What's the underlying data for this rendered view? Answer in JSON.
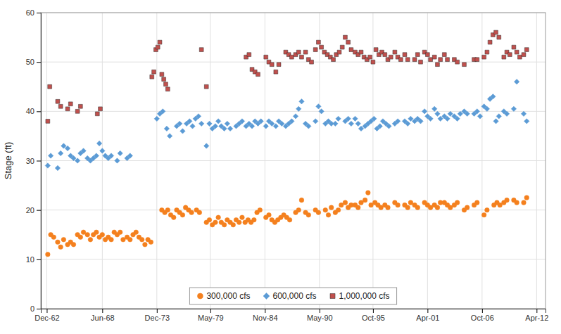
{
  "chart_data": {
    "type": "scatter",
    "ylabel": "Stage (ft)",
    "xlim": [
      1962.3,
      2013.2
    ],
    "ylim": [
      0,
      60
    ],
    "yticks": [
      0,
      10,
      20,
      30,
      40,
      50,
      60
    ],
    "xticks": [
      {
        "value": 1962.9,
        "label": "Dec-62"
      },
      {
        "value": 1968.5,
        "label": "Jun-68"
      },
      {
        "value": 1974.0,
        "label": "Dec-73"
      },
      {
        "value": 1979.4,
        "label": "May-79"
      },
      {
        "value": 1984.9,
        "label": "Nov-84"
      },
      {
        "value": 1990.4,
        "label": "May-90"
      },
      {
        "value": 1995.8,
        "label": "Oct-95"
      },
      {
        "value": 2001.3,
        "label": "Apr-01"
      },
      {
        "value": 2006.8,
        "label": "Oct-06"
      },
      {
        "value": 2012.3,
        "label": "Apr-12"
      }
    ],
    "grid": true,
    "legend": "lower center",
    "series": [
      {
        "name": "300,000 cfs",
        "color": "#f4801e",
        "marker": "circle",
        "x": [
          1963.0,
          1963.3,
          1963.6,
          1964.0,
          1964.3,
          1964.6,
          1965.0,
          1965.3,
          1965.6,
          1966.0,
          1966.3,
          1966.6,
          1967.0,
          1967.3,
          1967.6,
          1967.9,
          1968.2,
          1968.5,
          1968.8,
          1969.1,
          1969.4,
          1969.7,
          1970.0,
          1970.3,
          1970.6,
          1971.0,
          1971.3,
          1971.6,
          1971.9,
          1972.2,
          1972.5,
          1972.8,
          1973.1,
          1973.4,
          1974.5,
          1974.8,
          1975.1,
          1975.4,
          1975.7,
          1976.0,
          1976.3,
          1976.6,
          1976.9,
          1977.2,
          1977.5,
          1978.0,
          1978.3,
          1979.0,
          1979.3,
          1979.6,
          1979.9,
          1980.2,
          1980.5,
          1980.8,
          1981.1,
          1981.4,
          1981.7,
          1982.0,
          1982.3,
          1982.6,
          1982.9,
          1983.2,
          1983.5,
          1983.8,
          1984.1,
          1984.4,
          1985.0,
          1985.3,
          1985.6,
          1985.9,
          1986.2,
          1986.5,
          1986.8,
          1987.1,
          1987.4,
          1988.0,
          1988.3,
          1988.6,
          1989.0,
          1989.3,
          1990.0,
          1990.3,
          1991.0,
          1991.3,
          1991.6,
          1992.0,
          1992.3,
          1992.6,
          1993.0,
          1993.3,
          1993.6,
          1994.0,
          1994.3,
          1994.6,
          1995.0,
          1995.3,
          1995.6,
          1996.0,
          1996.3,
          1996.6,
          1997.0,
          1997.3,
          1998.0,
          1998.3,
          1999.0,
          1999.3,
          1999.6,
          2000.0,
          2000.3,
          2001.0,
          2001.3,
          2001.6,
          2002.0,
          2002.3,
          2002.6,
          2003.0,
          2003.3,
          2003.6,
          2004.0,
          2004.3,
          2005.0,
          2005.3,
          2006.0,
          2006.3,
          2007.0,
          2007.3,
          2008.0,
          2008.3,
          2008.6,
          2009.0,
          2009.3,
          2010.0,
          2010.3,
          2011.0,
          2011.3
        ],
        "values": [
          11.0,
          15.0,
          14.5,
          13.5,
          12.5,
          14.0,
          13.0,
          13.5,
          13.0,
          15.0,
          14.5,
          15.5,
          15.0,
          14.0,
          15.0,
          15.5,
          14.5,
          15.0,
          14.0,
          14.5,
          14.0,
          15.5,
          15.0,
          15.5,
          14.0,
          14.5,
          14.0,
          15.0,
          15.5,
          14.5,
          14.0,
          13.0,
          14.0,
          13.5,
          20.0,
          19.5,
          20.0,
          19.0,
          18.5,
          20.0,
          19.5,
          19.0,
          20.5,
          20.0,
          19.5,
          20.0,
          19.5,
          17.5,
          18.0,
          17.0,
          17.5,
          18.5,
          17.5,
          17.0,
          18.0,
          17.5,
          17.0,
          18.0,
          17.5,
          18.5,
          17.5,
          18.0,
          17.5,
          18.0,
          19.5,
          20.0,
          18.5,
          19.0,
          18.0,
          17.5,
          18.0,
          18.5,
          19.0,
          18.5,
          18.0,
          19.5,
          20.0,
          22.0,
          19.5,
          19.0,
          20.0,
          19.5,
          20.0,
          19.0,
          20.5,
          19.5,
          20.0,
          21.0,
          21.5,
          20.5,
          21.0,
          21.0,
          20.5,
          21.5,
          22.0,
          23.5,
          21.0,
          21.5,
          21.0,
          20.5,
          21.0,
          20.5,
          21.5,
          21.0,
          21.0,
          20.5,
          21.5,
          21.0,
          20.5,
          21.5,
          21.0,
          20.5,
          21.0,
          20.5,
          21.5,
          21.5,
          21.0,
          20.5,
          21.0,
          21.5,
          20.0,
          20.5,
          21.0,
          21.5,
          19.0,
          20.0,
          21.0,
          21.5,
          21.0,
          21.5,
          22.0,
          22.0,
          21.5,
          21.5,
          22.5
        ]
      },
      {
        "name": "600,000 cfs",
        "color": "#5b9bd5",
        "marker": "diamond",
        "x": [
          1963.0,
          1963.3,
          1964.0,
          1964.3,
          1964.6,
          1965.0,
          1965.3,
          1965.6,
          1966.0,
          1966.3,
          1966.6,
          1967.0,
          1967.3,
          1967.6,
          1967.9,
          1968.2,
          1968.5,
          1968.8,
          1969.1,
          1969.4,
          1970.0,
          1970.3,
          1971.0,
          1971.3,
          1974.0,
          1974.3,
          1974.6,
          1975.0,
          1975.3,
          1976.0,
          1976.3,
          1976.6,
          1977.0,
          1977.3,
          1977.6,
          1977.9,
          1978.2,
          1978.5,
          1979.0,
          1979.3,
          1979.6,
          1979.9,
          1980.2,
          1980.5,
          1980.8,
          1981.1,
          1981.4,
          1982.0,
          1982.3,
          1982.6,
          1983.0,
          1983.3,
          1983.6,
          1983.9,
          1984.2,
          1984.5,
          1985.0,
          1985.3,
          1985.6,
          1986.0,
          1986.3,
          1986.6,
          1987.0,
          1987.3,
          1987.6,
          1988.0,
          1988.3,
          1988.6,
          1989.0,
          1989.3,
          1990.0,
          1990.3,
          1990.6,
          1991.0,
          1991.3,
          1991.6,
          1992.0,
          1992.3,
          1993.0,
          1993.3,
          1993.6,
          1994.0,
          1994.3,
          1994.6,
          1995.0,
          1995.3,
          1995.6,
          1995.9,
          1996.2,
          1996.5,
          1996.8,
          1997.1,
          1997.4,
          1998.0,
          1998.3,
          1999.0,
          1999.3,
          1999.6,
          2000.0,
          2000.3,
          2000.6,
          2001.0,
          2001.3,
          2001.6,
          2002.0,
          2002.3,
          2002.6,
          2003.0,
          2003.3,
          2003.6,
          2004.0,
          2004.3,
          2004.6,
          2005.0,
          2005.3,
          2006.0,
          2006.3,
          2006.6,
          2007.0,
          2007.3,
          2007.6,
          2007.9,
          2008.2,
          2008.5,
          2009.0,
          2009.3,
          2010.0,
          2010.3,
          2011.0,
          2011.3
        ],
        "values": [
          29.0,
          31.0,
          28.5,
          31.5,
          33.0,
          32.5,
          31.0,
          30.5,
          30.0,
          31.5,
          32.0,
          30.5,
          30.0,
          30.5,
          31.0,
          33.5,
          32.0,
          31.0,
          30.5,
          31.0,
          30.0,
          31.5,
          30.5,
          31.0,
          38.5,
          39.5,
          40.0,
          36.5,
          35.0,
          37.0,
          37.5,
          36.0,
          37.5,
          38.0,
          37.0,
          38.5,
          39.0,
          37.5,
          33.0,
          37.5,
          36.5,
          37.0,
          38.0,
          37.0,
          36.5,
          37.5,
          36.5,
          37.0,
          37.5,
          38.0,
          37.0,
          37.5,
          37.0,
          38.0,
          37.5,
          38.0,
          37.0,
          38.0,
          37.5,
          37.0,
          38.0,
          37.5,
          37.0,
          37.5,
          38.0,
          39.0,
          40.5,
          42.0,
          37.5,
          37.0,
          38.0,
          41.0,
          40.0,
          37.5,
          38.0,
          37.5,
          37.5,
          38.5,
          38.0,
          38.5,
          37.5,
          38.5,
          37.5,
          36.5,
          37.0,
          37.5,
          38.0,
          38.5,
          36.5,
          37.0,
          38.0,
          37.5,
          37.0,
          37.5,
          38.0,
          38.0,
          37.5,
          38.5,
          38.0,
          38.5,
          38.0,
          40.0,
          39.0,
          38.5,
          40.5,
          39.5,
          38.5,
          39.0,
          38.5,
          39.5,
          39.0,
          38.5,
          39.5,
          40.0,
          39.5,
          39.5,
          40.0,
          39.0,
          41.0,
          40.5,
          42.5,
          43.0,
          38.0,
          39.0,
          40.0,
          39.5,
          40.5,
          46.0,
          39.5,
          38.0
        ]
      },
      {
        "name": "1,000,000 cfs",
        "color": "#c0504d",
        "marker": "square",
        "x": [
          1963.0,
          1963.2,
          1964.0,
          1964.3,
          1965.0,
          1965.3,
          1966.0,
          1966.3,
          1968.0,
          1968.3,
          1973.5,
          1973.7,
          1973.9,
          1974.1,
          1974.3,
          1974.5,
          1974.7,
          1974.9,
          1975.1,
          1978.5,
          1979.0,
          1983.0,
          1983.3,
          1983.6,
          1983.9,
          1984.2,
          1985.0,
          1985.3,
          1985.6,
          1986.0,
          1986.3,
          1987.0,
          1987.3,
          1987.6,
          1988.0,
          1988.3,
          1988.6,
          1989.0,
          1989.3,
          1989.6,
          1990.0,
          1990.3,
          1990.6,
          1990.9,
          1991.2,
          1991.5,
          1991.8,
          1992.1,
          1992.4,
          1992.7,
          1993.0,
          1993.3,
          1993.6,
          1994.0,
          1994.3,
          1994.6,
          1994.9,
          1995.2,
          1995.5,
          1995.8,
          1996.1,
          1996.4,
          1996.7,
          1997.0,
          1997.3,
          1997.6,
          1998.0,
          1998.3,
          1998.6,
          1999.0,
          1999.3,
          2000.0,
          2000.3,
          2000.6,
          2001.0,
          2001.3,
          2001.6,
          2002.0,
          2002.3,
          2002.6,
          2003.0,
          2003.3,
          2004.0,
          2004.3,
          2005.0,
          2006.0,
          2006.3,
          2007.0,
          2007.3,
          2007.6,
          2007.9,
          2008.2,
          2008.5,
          2009.0,
          2009.3,
          2009.6,
          2010.0,
          2010.3,
          2010.6,
          2011.0,
          2011.3
        ],
        "values": [
          38.0,
          45.0,
          42.0,
          41.0,
          40.5,
          41.5,
          40.0,
          41.0,
          39.5,
          40.5,
          47.0,
          48.0,
          52.5,
          53.0,
          54.0,
          47.5,
          46.5,
          45.5,
          44.5,
          52.5,
          45.0,
          51.0,
          51.5,
          48.5,
          48.0,
          47.5,
          51.0,
          50.0,
          49.5,
          48.0,
          49.5,
          52.0,
          51.5,
          51.0,
          51.5,
          52.0,
          51.0,
          52.0,
          50.5,
          50.0,
          52.5,
          54.0,
          53.0,
          52.0,
          51.5,
          51.0,
          50.5,
          51.5,
          52.0,
          53.0,
          55.0,
          54.0,
          52.5,
          52.0,
          51.5,
          52.0,
          51.0,
          50.5,
          51.0,
          50.0,
          52.5,
          51.5,
          52.0,
          51.5,
          50.5,
          51.0,
          52.0,
          51.0,
          50.5,
          51.5,
          50.5,
          50.5,
          51.5,
          50.0,
          52.0,
          51.5,
          50.5,
          51.0,
          49.5,
          50.5,
          51.5,
          50.5,
          50.5,
          50.0,
          49.5,
          50.5,
          50.5,
          51.0,
          52.0,
          54.0,
          55.5,
          56.0,
          55.0,
          51.0,
          52.0,
          51.5,
          53.0,
          52.0,
          51.0,
          51.5,
          52.5
        ]
      }
    ]
  }
}
